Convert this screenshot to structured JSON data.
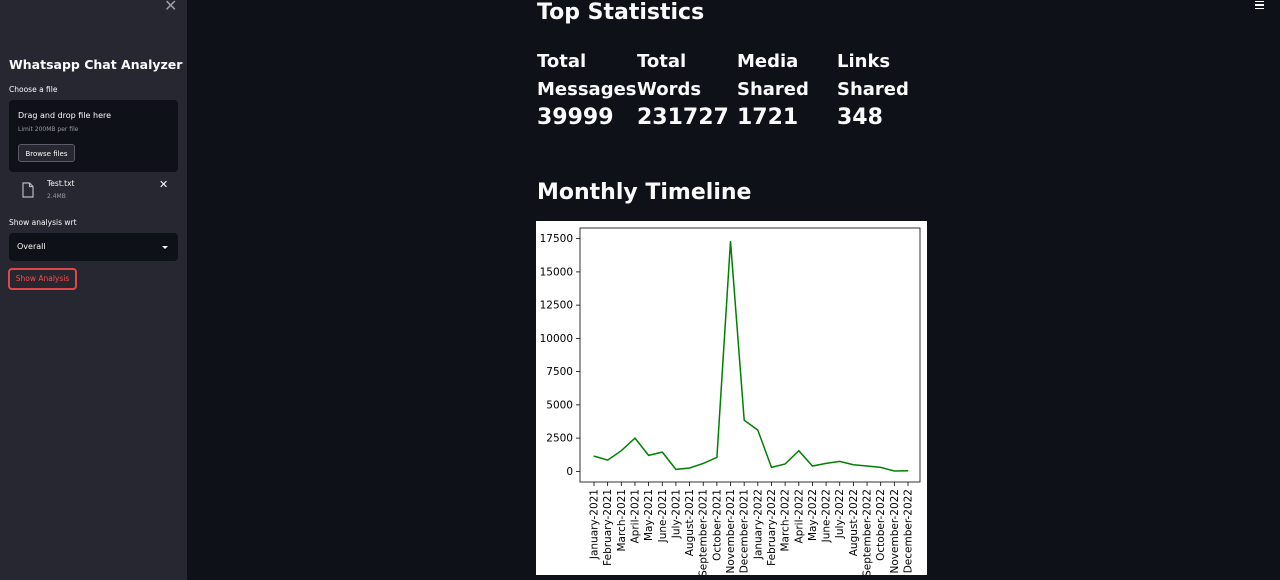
{
  "sidebar": {
    "close_icon": "close-icon",
    "title": "Whatsapp Chat Analyzer",
    "uploader": {
      "label": "Choose a file",
      "drag_text": "Drag and drop file here",
      "limit_text": "Limit 200MB per file",
      "browse_label": "Browse files"
    },
    "file": {
      "name": "Test.txt",
      "size": "2.4MB",
      "icon": "file-icon",
      "remove_icon": "close-icon"
    },
    "select": {
      "label": "Show analysis wrt",
      "value": "Overall"
    },
    "analysis_button": "Show Analysis",
    "accent_color": "#ff4b4b"
  },
  "header": {
    "menu_icon": "hamburger-icon"
  },
  "main": {
    "stats_heading": "Top Statistics",
    "stats": [
      {
        "label": "Total Messages",
        "value": "39999"
      },
      {
        "label": "Total Words",
        "value": "231727"
      },
      {
        "label": "Media Shared",
        "value": "1721"
      },
      {
        "label": "Links Shared",
        "value": "348"
      }
    ],
    "timeline_heading": "Monthly Timeline"
  },
  "chart_data": {
    "type": "line",
    "title": "",
    "xlabel": "",
    "ylabel": "",
    "line_color": "#008000",
    "ylim": [
      -800,
      18300
    ],
    "yticks": [
      0,
      2500,
      5000,
      7500,
      10000,
      12500,
      15000,
      17500
    ],
    "x": [
      "January-2021",
      "February-2021",
      "March-2021",
      "April-2021",
      "May-2021",
      "June-2021",
      "July-2021",
      "August-2021",
      "September-2021",
      "October-2021",
      "November-2021",
      "December-2021",
      "January-2022",
      "February-2022",
      "March-2022",
      "April-2022",
      "May-2022",
      "June-2022",
      "July-2022",
      "August-2022",
      "September-2022",
      "October-2022",
      "November-2022",
      "December-2022"
    ],
    "y": [
      1150,
      850,
      1550,
      2500,
      1200,
      1450,
      150,
      250,
      600,
      1050,
      17300,
      3850,
      3100,
      300,
      550,
      1550,
      400,
      600,
      750,
      500,
      400,
      300,
      30,
      50
    ]
  }
}
